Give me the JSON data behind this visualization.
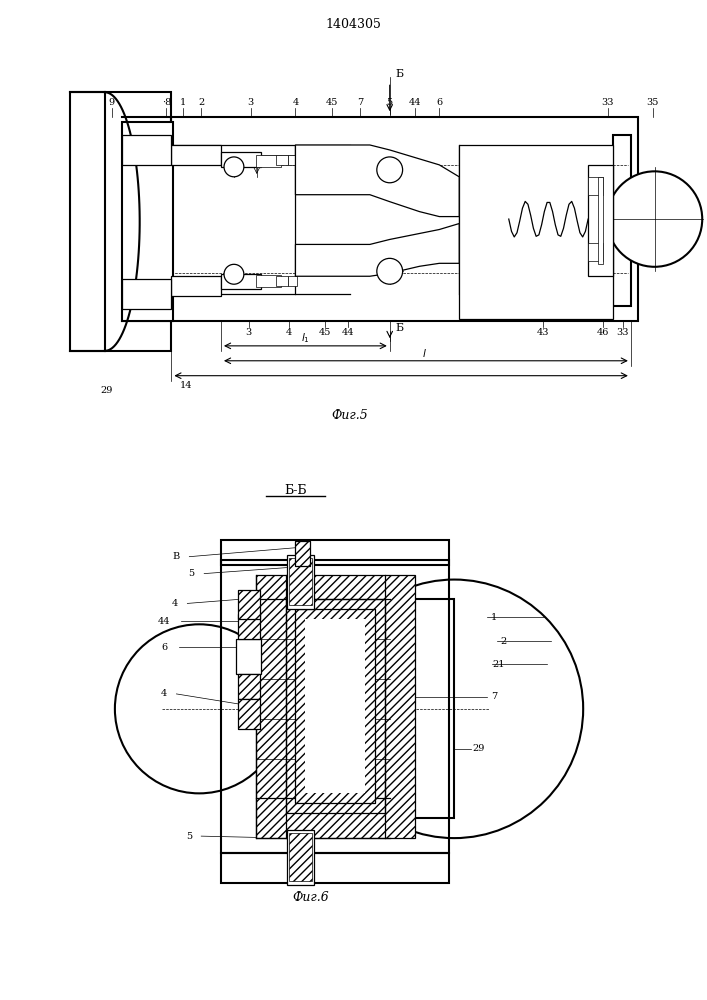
{
  "patent_number": "1404305",
  "fig5_caption": "Фиг.5",
  "fig6_caption": "Фиг.6",
  "section_label": "Б-Б",
  "bg_color": "#ffffff",
  "line_color": "#000000"
}
